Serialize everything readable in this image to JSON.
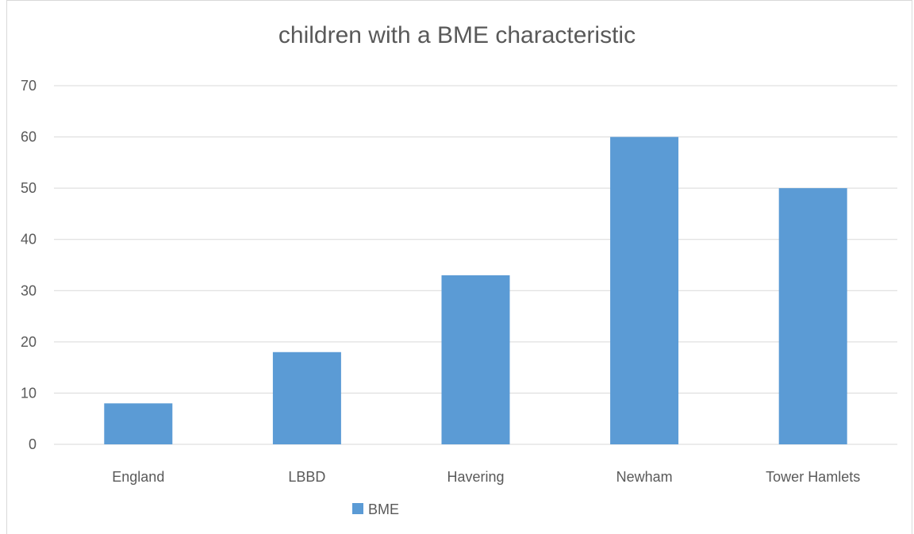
{
  "chart_data": {
    "type": "bar",
    "title": "children with a BME characteristic",
    "xlabel": "",
    "ylabel": "",
    "categories": [
      "England",
      "LBBD",
      "Havering",
      "Newham",
      "Tower Hamlets"
    ],
    "series": [
      {
        "name": "BME",
        "values": [
          8,
          18,
          33,
          60,
          50
        ],
        "color": "#5b9bd5"
      }
    ],
    "ylim": [
      0,
      70
    ],
    "yticks": [
      0,
      10,
      20,
      30,
      40,
      50,
      60,
      70
    ],
    "grid": true,
    "legend": "bottom"
  },
  "colors": {
    "grid": "#d9d9d9",
    "text": "#595959"
  }
}
